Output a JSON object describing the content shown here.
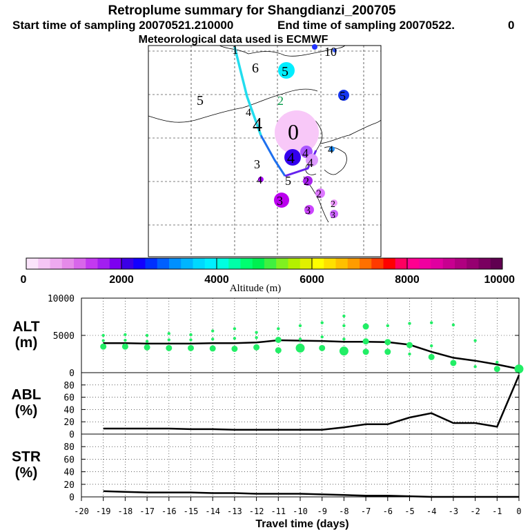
{
  "title": {
    "line1": "Retroplume summary for Shangdianzi_200705",
    "start_label": "Start time of sampling 20070521.210000",
    "end_label": "End time of sampling 20070522.",
    "end_value": "0",
    "line3": "Meteorological data used is ECMWF"
  },
  "map": {
    "trajectory_color": "#1e90ff",
    "clusters": [
      {
        "label": "1",
        "color": "#0000ff",
        "size": "small"
      },
      {
        "label": "10",
        "color": "#3333ff",
        "size": "small"
      },
      {
        "label": "6",
        "color": "#000000",
        "size": "none"
      },
      {
        "label": "5",
        "color": "#00ffff",
        "size": "medium"
      },
      {
        "label": "5",
        "color": "#0000ee",
        "size": "medium"
      },
      {
        "label": "5",
        "color": "#000000",
        "size": "none"
      },
      {
        "label": "2",
        "color": "#00cc66",
        "size": "none"
      },
      {
        "label": "4",
        "color": "#000000",
        "size": "none"
      },
      {
        "label": "4",
        "color": "#000000",
        "size": "none"
      },
      {
        "label": "0",
        "color": "#f5b8f5",
        "size": "large"
      },
      {
        "label": "4",
        "color": "#1e90ff",
        "size": "small"
      },
      {
        "label": "4",
        "color": "#3300ff",
        "size": "medium"
      },
      {
        "label": "4",
        "color": "#aa44ff",
        "size": "medium"
      },
      {
        "label": "4",
        "color": "#dd88ff",
        "size": "medium"
      },
      {
        "label": "3",
        "color": "#000000",
        "size": "none"
      },
      {
        "label": "5",
        "color": "#000000",
        "size": "none"
      },
      {
        "label": "2",
        "color": "#aa22ee",
        "size": "small"
      },
      {
        "label": "4",
        "color": "#aa00ff",
        "size": "small"
      },
      {
        "label": "2",
        "color": "#dd77ff",
        "size": "small"
      },
      {
        "label": "3",
        "color": "#bb00ee",
        "size": "medium"
      },
      {
        "label": "3",
        "color": "#cc55ff",
        "size": "small"
      },
      {
        "label": "2",
        "color": "#ee99ff",
        "size": "small"
      },
      {
        "label": "3",
        "color": "#cc66ff",
        "size": "small"
      }
    ]
  },
  "colorbar": {
    "ticks": [
      "0",
      "2000",
      "4000",
      "6000",
      "8000",
      "10000"
    ],
    "label": "Altitude (m)",
    "colors": [
      "#fbe4fb",
      "#f5c6f5",
      "#eeaaf0",
      "#e58ae9",
      "#d866ea",
      "#c339f0",
      "#a21ff0",
      "#7d00f0",
      "#3b00e6",
      "#1200ff",
      "#0030ff",
      "#0060ff",
      "#0090ff",
      "#00b5ff",
      "#00d8ff",
      "#00f0ff",
      "#00ffe0",
      "#00ffa8",
      "#00ff70",
      "#00f050",
      "#40f040",
      "#80f020",
      "#b4f000",
      "#e0f000",
      "#ffff00",
      "#ffe000",
      "#ffc000",
      "#ff9c00",
      "#ff7000",
      "#ff3a00",
      "#ff0000",
      "#ff0060",
      "#ff0090",
      "#f000a0",
      "#e000a0",
      "#c80090",
      "#b00080",
      "#960070",
      "#7a0060",
      "#600050"
    ]
  },
  "chart_data": [
    {
      "type": "line",
      "panel": "ALT",
      "ylabel": "ALT\n(m)",
      "ylabel_line1": "ALT",
      "ylabel_line2": "(m)",
      "ylim": [
        0,
        10000
      ],
      "yticks": [
        "10000",
        "5000",
        "0"
      ],
      "x": [
        -19,
        -18,
        -17,
        -16,
        -15,
        -14,
        -13,
        -12,
        -11,
        -10,
        -9,
        -8,
        -7,
        -6,
        -5,
        -4,
        -3,
        -2,
        -1,
        0
      ],
      "series": [
        {
          "name": "mean altitude",
          "values": [
            3950,
            3950,
            3900,
            3900,
            3900,
            3950,
            3950,
            4050,
            4350,
            4300,
            4250,
            4150,
            4150,
            4100,
            3750,
            2800,
            2000,
            1600,
            1100,
            500
          ]
        },
        {
          "name": "cluster altitude",
          "color": "#22ee66",
          "points": [
            [
              -19,
              3500,
              2
            ],
            [
              -19,
              4300,
              1
            ],
            [
              -19,
              5000,
              1
            ],
            [
              -18,
              3500,
              2
            ],
            [
              -18,
              4350,
              1
            ],
            [
              -18,
              5100,
              1
            ],
            [
              -17,
              3400,
              2
            ],
            [
              -17,
              4200,
              1
            ],
            [
              -17,
              5000,
              1
            ],
            [
              -16,
              3300,
              2
            ],
            [
              -16,
              4400,
              1
            ],
            [
              -16,
              5250,
              1
            ],
            [
              -15,
              3300,
              2
            ],
            [
              -15,
              4400,
              1
            ],
            [
              -15,
              5100,
              1
            ],
            [
              -14,
              3250,
              2
            ],
            [
              -14,
              4500,
              1
            ],
            [
              -14,
              5600,
              1
            ],
            [
              -13,
              3200,
              2
            ],
            [
              -13,
              4600,
              1
            ],
            [
              -13,
              5900,
              1
            ],
            [
              -12,
              3400,
              2
            ],
            [
              -12,
              4700,
              1
            ],
            [
              -12,
              5400,
              1
            ],
            [
              -11,
              3000,
              2
            ],
            [
              -11,
              4400,
              2
            ],
            [
              -11,
              5900,
              1
            ],
            [
              -10,
              3300,
              3
            ],
            [
              -10,
              4500,
              1
            ],
            [
              -10,
              6300,
              1
            ],
            [
              -9,
              3300,
              2
            ],
            [
              -9,
              4800,
              1
            ],
            [
              -9,
              6700,
              1
            ],
            [
              -8,
              2900,
              3
            ],
            [
              -8,
              4500,
              1
            ],
            [
              -8,
              6300,
              1
            ],
            [
              -8,
              7600,
              1
            ],
            [
              -7,
              2800,
              2
            ],
            [
              -7,
              4200,
              2
            ],
            [
              -7,
              6200,
              2
            ],
            [
              -6,
              2800,
              2
            ],
            [
              -6,
              4100,
              2
            ],
            [
              -6,
              6300,
              1
            ],
            [
              -5,
              2500,
              1
            ],
            [
              -5,
              3700,
              2
            ],
            [
              -5,
              6600,
              1
            ],
            [
              -4,
              2100,
              2
            ],
            [
              -4,
              3600,
              1
            ],
            [
              -4,
              6700,
              1
            ],
            [
              -3,
              1300,
              2
            ],
            [
              -3,
              6400,
              1
            ],
            [
              -2,
              800,
              1
            ],
            [
              -2,
              4300,
              1
            ],
            [
              -1,
              500,
              2
            ],
            [
              -1,
              1400,
              1
            ],
            [
              0,
              500,
              3
            ]
          ]
        }
      ]
    },
    {
      "type": "line",
      "panel": "ABL",
      "ylabel_line1": "ABL",
      "ylabel_line2": "(%)",
      "ylim": [
        0,
        100
      ],
      "yticks": [
        "80",
        "60",
        "40",
        "20",
        "0"
      ],
      "x": [
        -19,
        -18,
        -17,
        -16,
        -15,
        -14,
        -13,
        -12,
        -11,
        -10,
        -9,
        -8,
        -7,
        -6,
        -5,
        -4,
        -3,
        -2,
        -1,
        0
      ],
      "series": [
        {
          "name": "ABL fraction",
          "values": [
            9,
            9,
            9,
            9,
            8,
            8,
            7,
            7,
            7,
            7,
            7,
            11,
            16,
            16,
            27,
            34,
            18,
            18,
            12,
            96
          ]
        }
      ]
    },
    {
      "type": "line",
      "panel": "STR",
      "ylabel_line1": "STR",
      "ylabel_line2": "(%)",
      "ylim": [
        0,
        100
      ],
      "yticks": [
        "80",
        "60",
        "40",
        "20",
        "0"
      ],
      "x": [
        -19,
        -18,
        -17,
        -16,
        -15,
        -14,
        -13,
        -12,
        -11,
        -10,
        -9,
        -8,
        -7,
        -6,
        -5,
        -4,
        -3,
        -2,
        -1,
        0
      ],
      "series": [
        {
          "name": "STR fraction",
          "values": [
            9,
            8,
            7,
            7,
            7,
            6,
            6,
            5,
            5,
            5,
            4,
            3,
            2,
            2,
            1,
            0,
            0,
            0,
            0,
            0
          ]
        }
      ]
    }
  ],
  "xaxis": {
    "ticks": [
      "-20",
      "-19",
      "-18",
      "-17",
      "-16",
      "-15",
      "-14",
      "-13",
      "-12",
      "-11",
      "-10",
      "-9",
      "-8",
      "-7",
      "-6",
      "-5",
      "-4",
      "-3",
      "-2",
      "-1",
      "0"
    ],
    "label": "Travel time (days)"
  }
}
